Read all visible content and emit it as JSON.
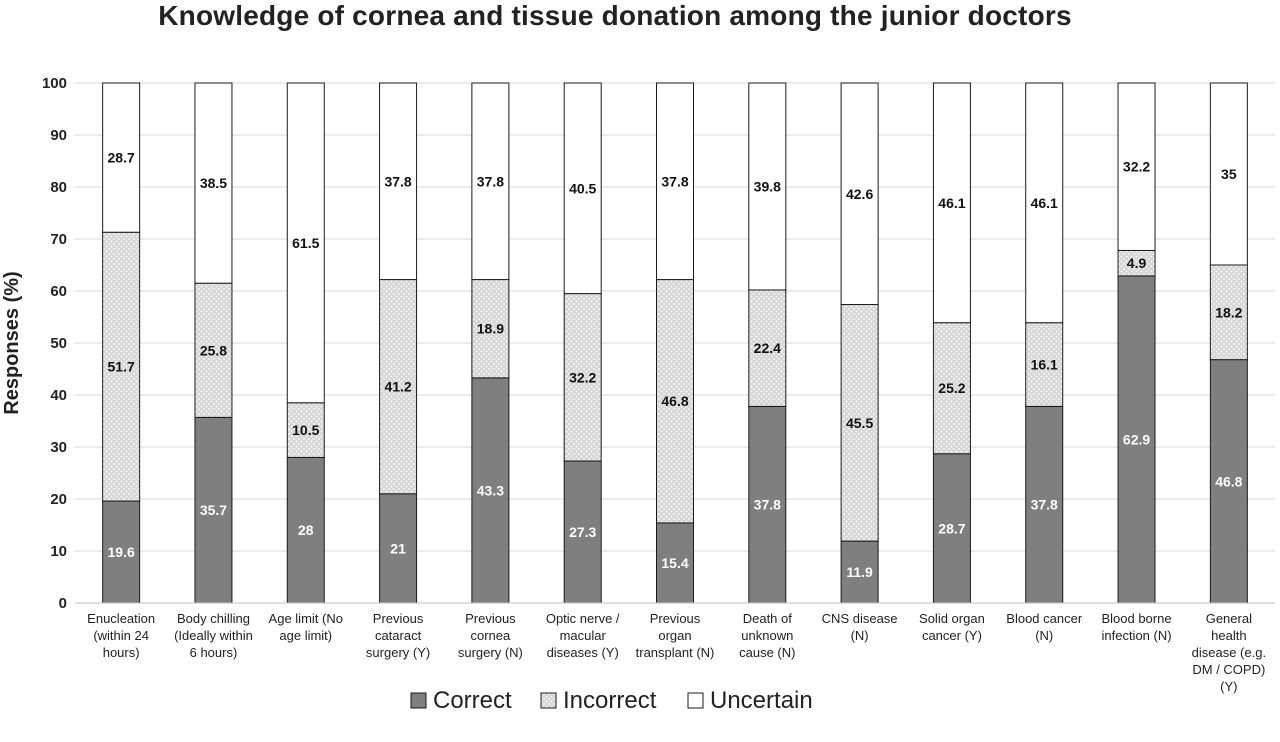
{
  "chart_data": {
    "type": "bar",
    "stacked": true,
    "title": "Knowledge of cornea and tissue donation among the junior doctors",
    "ylabel": "Responses (%)",
    "xlabel": "",
    "ylim": [
      0,
      100
    ],
    "yticks": [
      0,
      10,
      20,
      30,
      40,
      50,
      60,
      70,
      80,
      90,
      100
    ],
    "grid": true,
    "legend_position": "bottom",
    "categories": [
      [
        "Enucleation",
        "(within 24",
        "hours)"
      ],
      [
        "Body chilling",
        "(Ideally within",
        "6 hours)"
      ],
      [
        "Age limit (No",
        "age limit)"
      ],
      [
        "Previous",
        "cataract",
        "surgery (Y)"
      ],
      [
        "Previous",
        "cornea",
        "surgery (N)"
      ],
      [
        "Optic nerve /",
        "macular",
        "diseases (Y)"
      ],
      [
        "Previous",
        "organ",
        "transplant (N)"
      ],
      [
        "Death of",
        "unknown",
        "cause (N)"
      ],
      [
        "CNS disease",
        "(N)"
      ],
      [
        "Solid organ",
        "cancer (Y)"
      ],
      [
        "Blood cancer",
        "(N)"
      ],
      [
        "Blood borne",
        "infection (N)"
      ],
      [
        "General",
        "health",
        "disease (e.g.",
        "DM / COPD)",
        "(Y)"
      ]
    ],
    "series": [
      {
        "name": "Correct",
        "color": "#7f7f7f",
        "values": [
          19.6,
          35.7,
          28,
          21,
          43.3,
          27.3,
          15.4,
          37.8,
          11.9,
          28.7,
          37.8,
          62.9,
          46.8
        ]
      },
      {
        "name": "Incorrect",
        "color": "#d9d9d9",
        "values": [
          51.7,
          25.8,
          10.5,
          41.2,
          18.9,
          32.2,
          46.8,
          22.4,
          45.5,
          25.2,
          16.1,
          4.9,
          18.2
        ]
      },
      {
        "name": "Uncertain",
        "color": "#ffffff",
        "values": [
          28.7,
          38.5,
          61.5,
          37.8,
          37.8,
          40.5,
          37.8,
          39.8,
          42.6,
          46.1,
          46.1,
          32.2,
          35
        ]
      }
    ]
  }
}
